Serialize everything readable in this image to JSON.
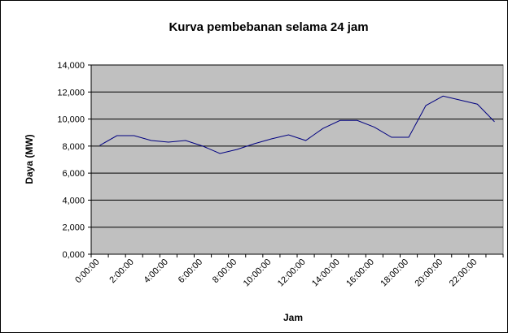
{
  "chart_data": {
    "type": "line",
    "title": "Kurva pembebanan selama 24 jam",
    "x_label": "Jam",
    "y_label": "Daya (MW)",
    "categories": [
      "0:00:00",
      null,
      "2:00:00",
      null,
      "4:00:00",
      null,
      "6:00:00",
      null,
      "8:00:00",
      null,
      "10:00:00",
      null,
      "12:00:00",
      null,
      "14:00:00",
      null,
      "16:00:00",
      null,
      "18:00:00",
      null,
      "20:00:00",
      null,
      "22:00:00",
      null
    ],
    "series": [
      {
        "name": "Daya",
        "color": "#000080",
        "values": [
          8.05,
          8.77,
          8.77,
          8.41,
          8.29,
          8.41,
          8.0,
          7.45,
          7.75,
          8.17,
          8.53,
          8.83,
          8.41,
          9.3,
          9.9,
          9.9,
          9.4,
          8.65,
          8.65,
          11.0,
          11.7,
          11.4,
          11.1,
          9.8
        ]
      }
    ],
    "ylim": [
      0,
      14
    ],
    "yticks": [
      {
        "value": 0,
        "label": "0,000"
      },
      {
        "value": 2,
        "label": "2,000"
      },
      {
        "value": 4,
        "label": "4,000"
      },
      {
        "value": 6,
        "label": "6,000"
      },
      {
        "value": 8,
        "label": "8,000"
      },
      {
        "value": 10,
        "label": "10,000"
      },
      {
        "value": 12,
        "label": "12,000"
      },
      {
        "value": 14,
        "label": "14,000"
      }
    ],
    "grid": true,
    "plot_color": "#c0c0c0"
  }
}
